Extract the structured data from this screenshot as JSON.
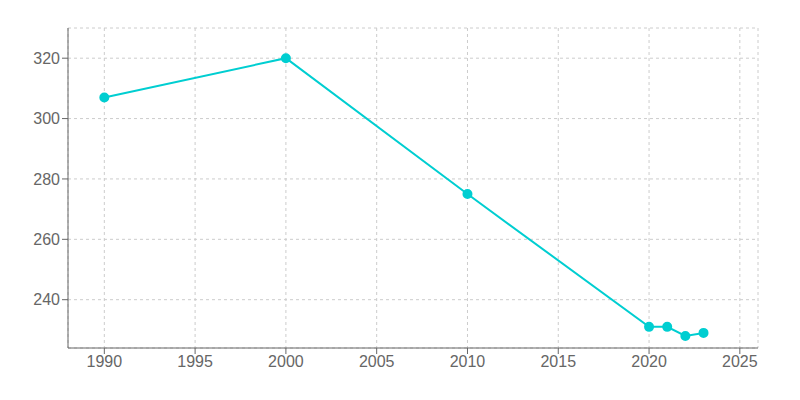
{
  "chart_data": {
    "type": "line",
    "x": [
      1990,
      2000,
      2010,
      2020,
      2021,
      2022,
      2023
    ],
    "values": [
      307,
      320,
      275,
      231,
      231,
      228,
      229
    ],
    "color": "#00CED1",
    "marker": "circle",
    "xlim": [
      1988,
      2026
    ],
    "ylim": [
      224,
      330
    ],
    "xticks": [
      1990,
      1995,
      2000,
      2005,
      2010,
      2015,
      2020,
      2025
    ],
    "yticks": [
      240,
      260,
      280,
      300,
      320
    ],
    "grid": true
  }
}
